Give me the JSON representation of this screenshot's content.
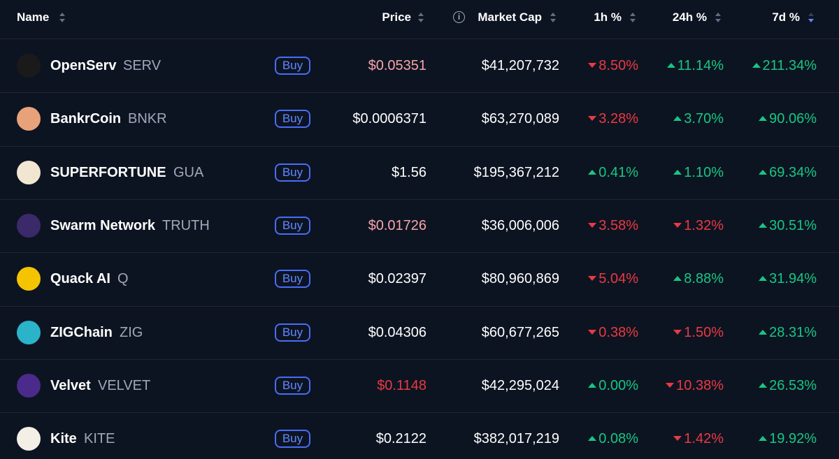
{
  "header": {
    "name": "Name",
    "price": "Price",
    "market_cap": "Market Cap",
    "change_1h": "1h %",
    "change_24h": "24h %",
    "change_7d": "7d %",
    "sort_active": "change_7d"
  },
  "buy_label": "Buy",
  "rows": [
    {
      "name": "OpenServ",
      "symbol": "SERV",
      "icon_color": "#1a1a1a",
      "price": "$0.05351",
      "price_color": "#f6a5a9",
      "market_cap": "$41,207,732",
      "change_1h": "8.50%",
      "trend_1h": "down",
      "change_24h": "11.14%",
      "trend_24h": "up",
      "change_7d": "211.34%",
      "trend_7d": "up"
    },
    {
      "name": "BankrCoin",
      "symbol": "BNKR",
      "icon_color": "#e8a27a",
      "price": "$0.0006371",
      "price_color": "#ffffff",
      "market_cap": "$63,270,089",
      "change_1h": "3.28%",
      "trend_1h": "down",
      "change_24h": "3.70%",
      "trend_24h": "up",
      "change_7d": "90.06%",
      "trend_7d": "up"
    },
    {
      "name": "SUPERFORTUNE",
      "symbol": "GUA",
      "icon_color": "#f1e6d2",
      "price": "$1.56",
      "price_color": "#ffffff",
      "market_cap": "$195,367,212",
      "change_1h": "0.41%",
      "trend_1h": "up",
      "change_24h": "1.10%",
      "trend_24h": "up",
      "change_7d": "69.34%",
      "trend_7d": "up"
    },
    {
      "name": "Swarm Network",
      "symbol": "TRUTH",
      "icon_color": "#3a2a6a",
      "price": "$0.01726",
      "price_color": "#f6a5a9",
      "market_cap": "$36,006,006",
      "change_1h": "3.58%",
      "trend_1h": "down",
      "change_24h": "1.32%",
      "trend_24h": "down",
      "change_7d": "30.51%",
      "trend_7d": "up"
    },
    {
      "name": "Quack AI",
      "symbol": "Q",
      "icon_color": "#f5c400",
      "price": "$0.02397",
      "price_color": "#ffffff",
      "market_cap": "$80,960,869",
      "change_1h": "5.04%",
      "trend_1h": "down",
      "change_24h": "8.88%",
      "trend_24h": "up",
      "change_7d": "31.94%",
      "trend_7d": "up"
    },
    {
      "name": "ZIGChain",
      "symbol": "ZIG",
      "icon_color": "#2bb3c9",
      "price": "$0.04306",
      "price_color": "#ffffff",
      "market_cap": "$60,677,265",
      "change_1h": "0.38%",
      "trend_1h": "down",
      "change_24h": "1.50%",
      "trend_24h": "down",
      "change_7d": "28.31%",
      "trend_7d": "up"
    },
    {
      "name": "Velvet",
      "symbol": "VELVET",
      "icon_color": "#4a2a8a",
      "price": "$0.1148",
      "price_color": "#ea3943",
      "market_cap": "$42,295,024",
      "change_1h": "0.00%",
      "trend_1h": "up",
      "change_24h": "10.38%",
      "trend_24h": "down",
      "change_7d": "26.53%",
      "trend_7d": "up"
    },
    {
      "name": "Kite",
      "symbol": "KITE",
      "icon_color": "#f3efe6",
      "price": "$0.2122",
      "price_color": "#ffffff",
      "market_cap": "$382,017,219",
      "change_1h": "0.08%",
      "trend_1h": "up",
      "change_24h": "1.42%",
      "trend_24h": "down",
      "change_7d": "19.92%",
      "trend_7d": "up"
    }
  ]
}
